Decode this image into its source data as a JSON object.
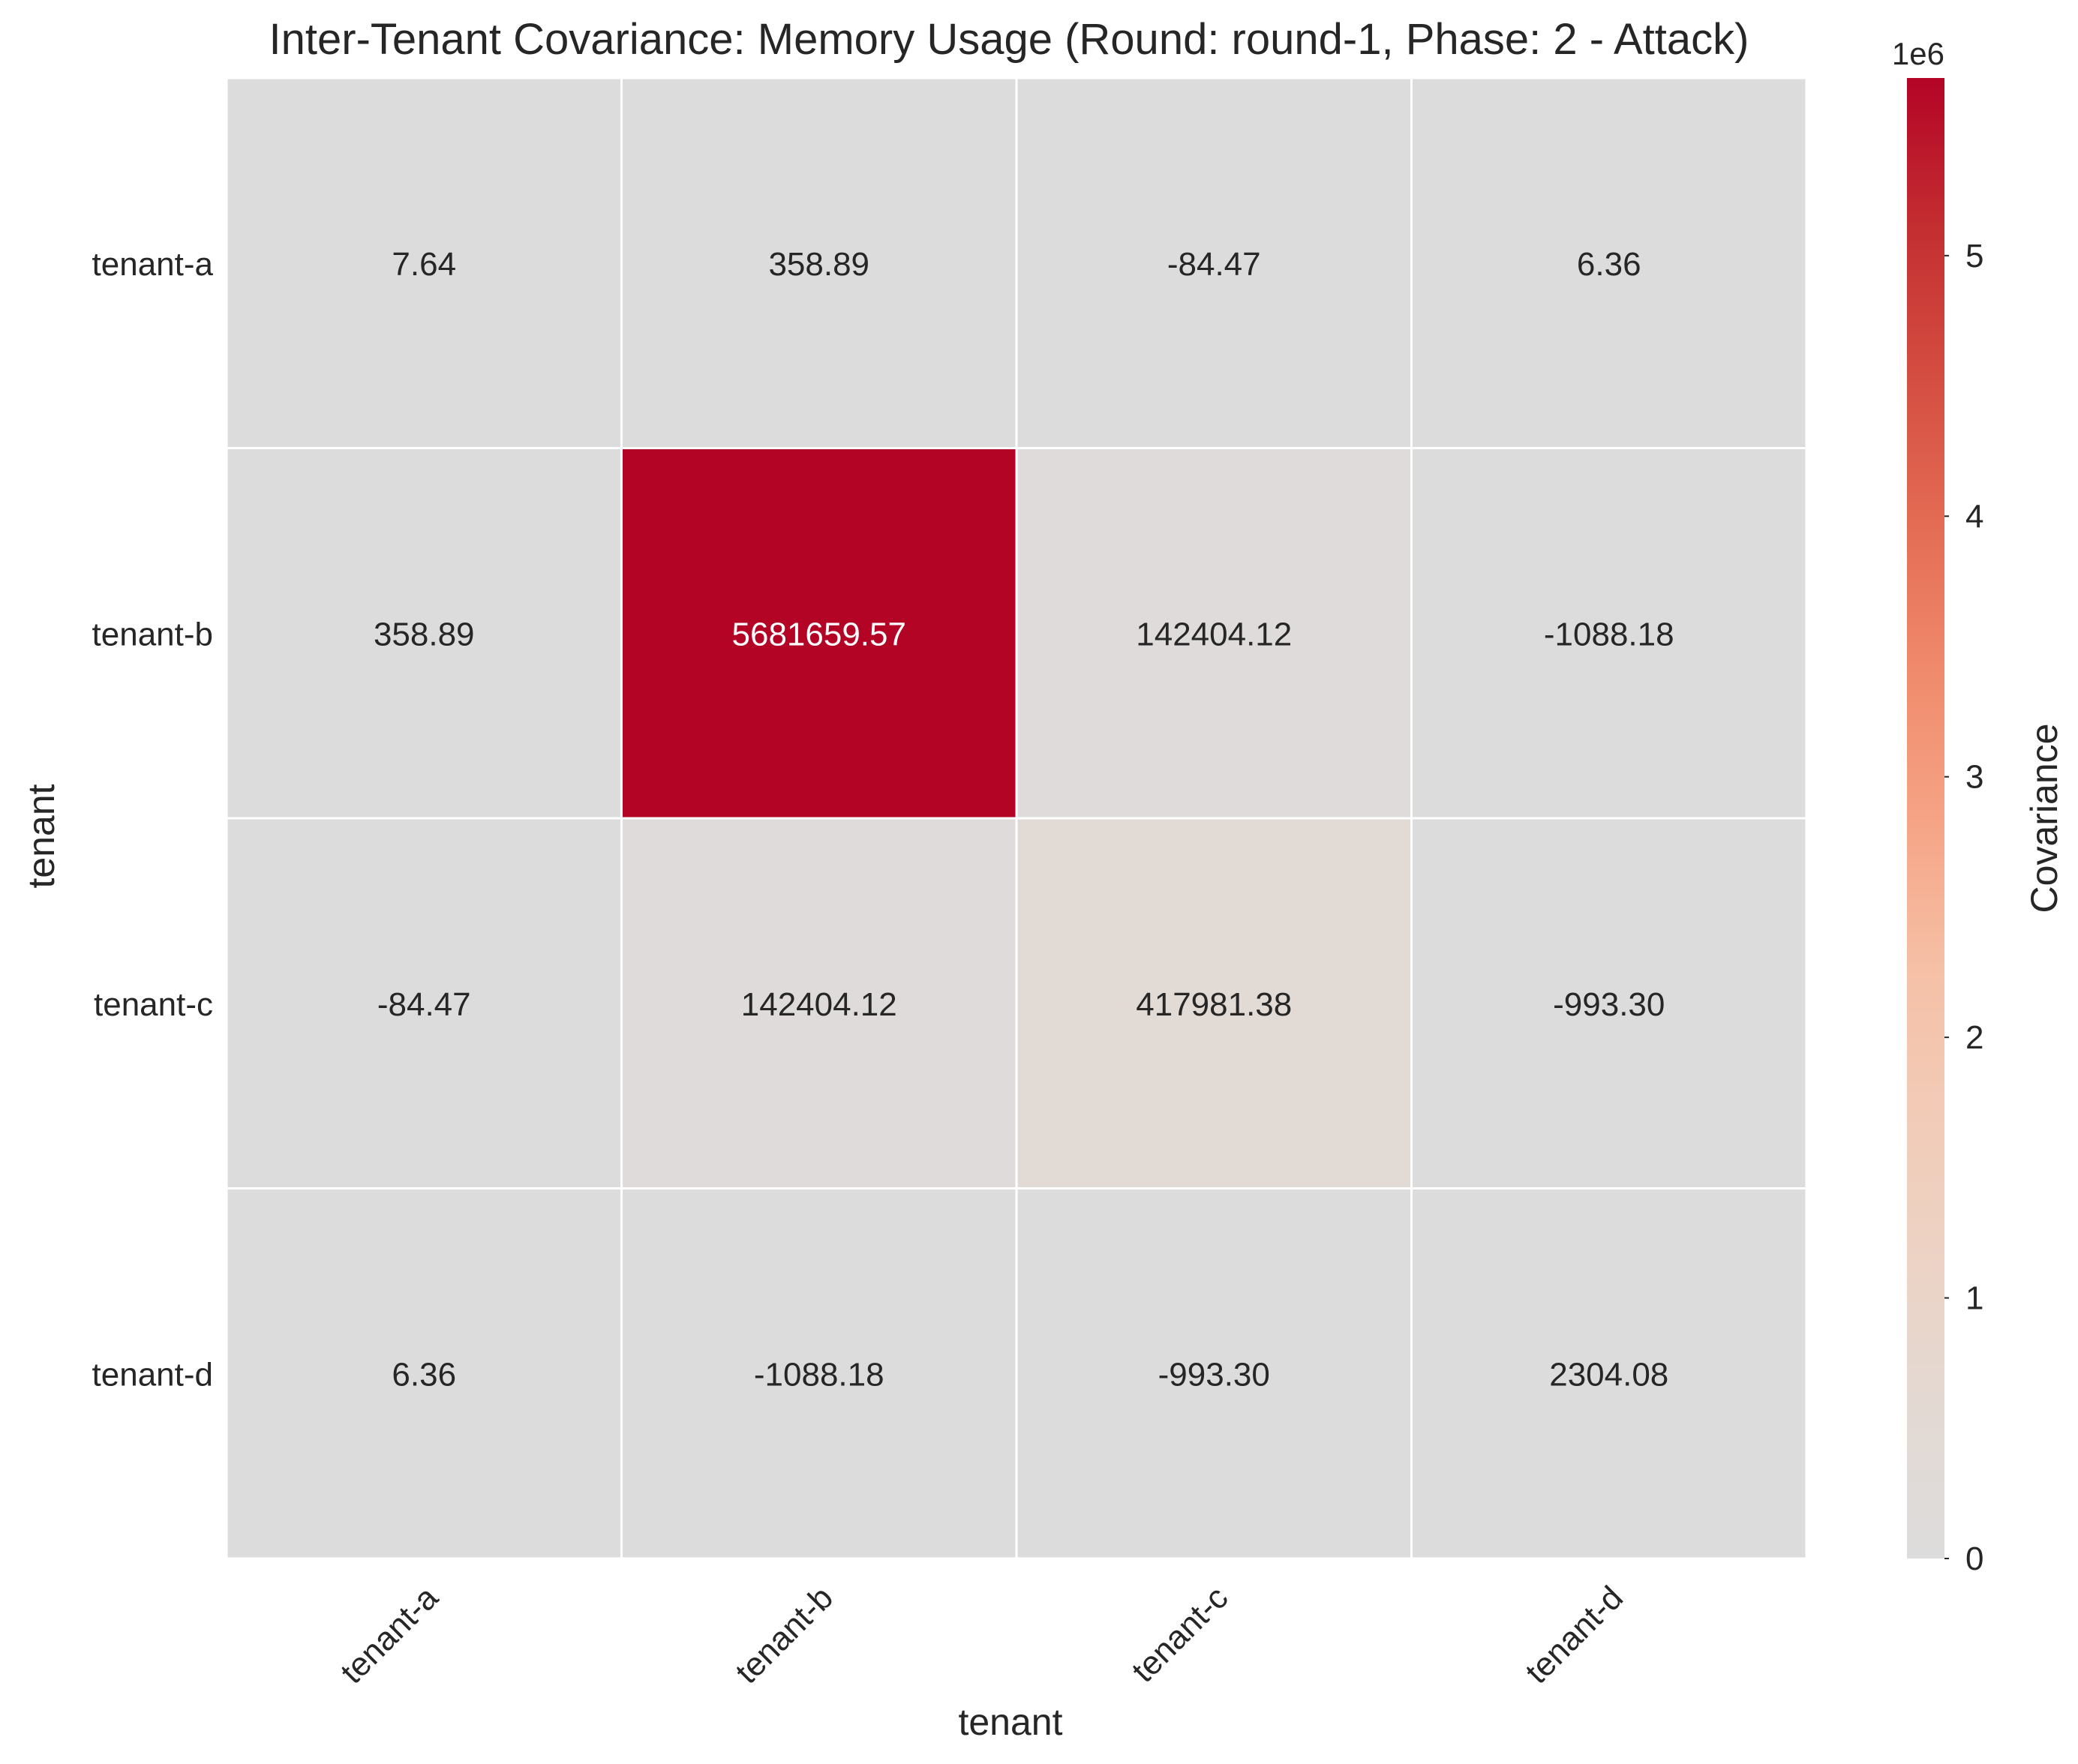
{
  "chart_data": {
    "type": "heatmap",
    "title": "Inter-Tenant Covariance: Memory Usage (Round: round-1, Phase: 2 - Attack)",
    "xlabel": "tenant",
    "ylabel": "tenant",
    "x_categories": [
      "tenant-a",
      "tenant-b",
      "tenant-c",
      "tenant-d"
    ],
    "y_categories": [
      "tenant-a",
      "tenant-b",
      "tenant-c",
      "tenant-d"
    ],
    "values": [
      [
        7.64,
        358.89,
        -84.47,
        6.36
      ],
      [
        358.89,
        5681659.57,
        142404.12,
        -1088.18
      ],
      [
        -84.47,
        142404.12,
        417981.38,
        -993.3
      ],
      [
        6.36,
        -1088.18,
        -993.3,
        2304.08
      ]
    ],
    "value_labels": [
      [
        "7.64",
        "358.89",
        "-84.47",
        "6.36"
      ],
      [
        "358.89",
        "5681659.57",
        "142404.12",
        "-1088.18"
      ],
      [
        "-84.47",
        "142404.12",
        "417981.38",
        "-993.30"
      ],
      [
        "6.36",
        "-1088.18",
        "-993.30",
        "2304.08"
      ]
    ],
    "colormap": {
      "name": "coolwarm (centered at 0)",
      "low_color": "#dddddd",
      "high_color": "#b40426"
    },
    "colorbar": {
      "label": "Covariance",
      "offset_text": "1e6",
      "range": [
        0,
        5681659.57
      ],
      "ticks": [
        0,
        1000000,
        2000000,
        3000000,
        4000000,
        5000000
      ],
      "tick_labels": [
        "0",
        "1",
        "2",
        "3",
        "4",
        "5"
      ]
    },
    "grid": true,
    "cell_border_color": "#ffffff"
  }
}
